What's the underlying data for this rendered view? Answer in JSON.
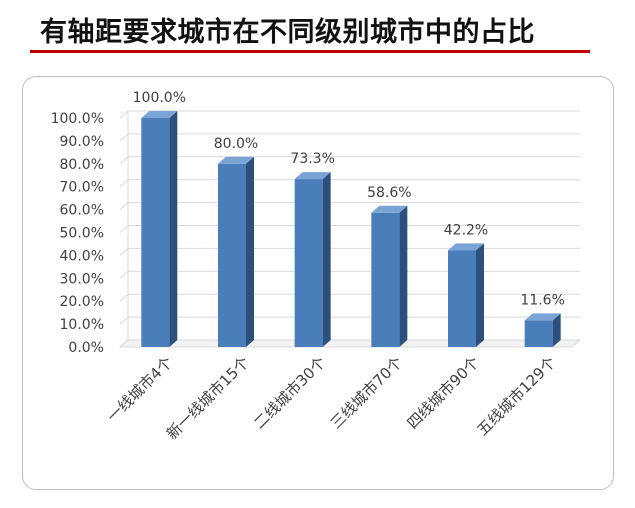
{
  "title": "有轴距要求城市在不同级别城市中的占比",
  "colors": {
    "title_rule": "#c00000",
    "bar_front": "#4a7ebb",
    "bar_side": "#2d4f7c",
    "bar_top": "#7aa3d6",
    "grid": "#d9d9d9"
  },
  "chart_data": {
    "type": "bar",
    "categories": [
      "一线城市4个",
      "新一线城市15个",
      "二线城市30个",
      "三线城市70个",
      "四线城市90个",
      "五线城市129个"
    ],
    "values": [
      100.0,
      80.0,
      73.3,
      58.6,
      42.2,
      11.6
    ],
    "value_labels": [
      "100.0%",
      "80.0%",
      "73.3%",
      "58.6%",
      "42.2%",
      "11.6%"
    ],
    "y_ticks": [
      "0.0%",
      "10.0%",
      "20.0%",
      "30.0%",
      "40.0%",
      "50.0%",
      "60.0%",
      "70.0%",
      "80.0%",
      "90.0%",
      "100.0%"
    ],
    "ylim": [
      0,
      100
    ],
    "grid": true,
    "legend": "none"
  }
}
